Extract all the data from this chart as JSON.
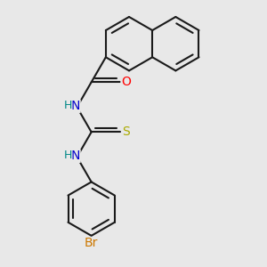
{
  "background_color": "#e8e8e8",
  "bond_color": "#1a1a1a",
  "bond_width": 1.5,
  "colors": {
    "N": "#0000cc",
    "O": "#ff0000",
    "S": "#aaaa00",
    "Br": "#cc7700",
    "H": "#008888"
  },
  "font_size": 10
}
